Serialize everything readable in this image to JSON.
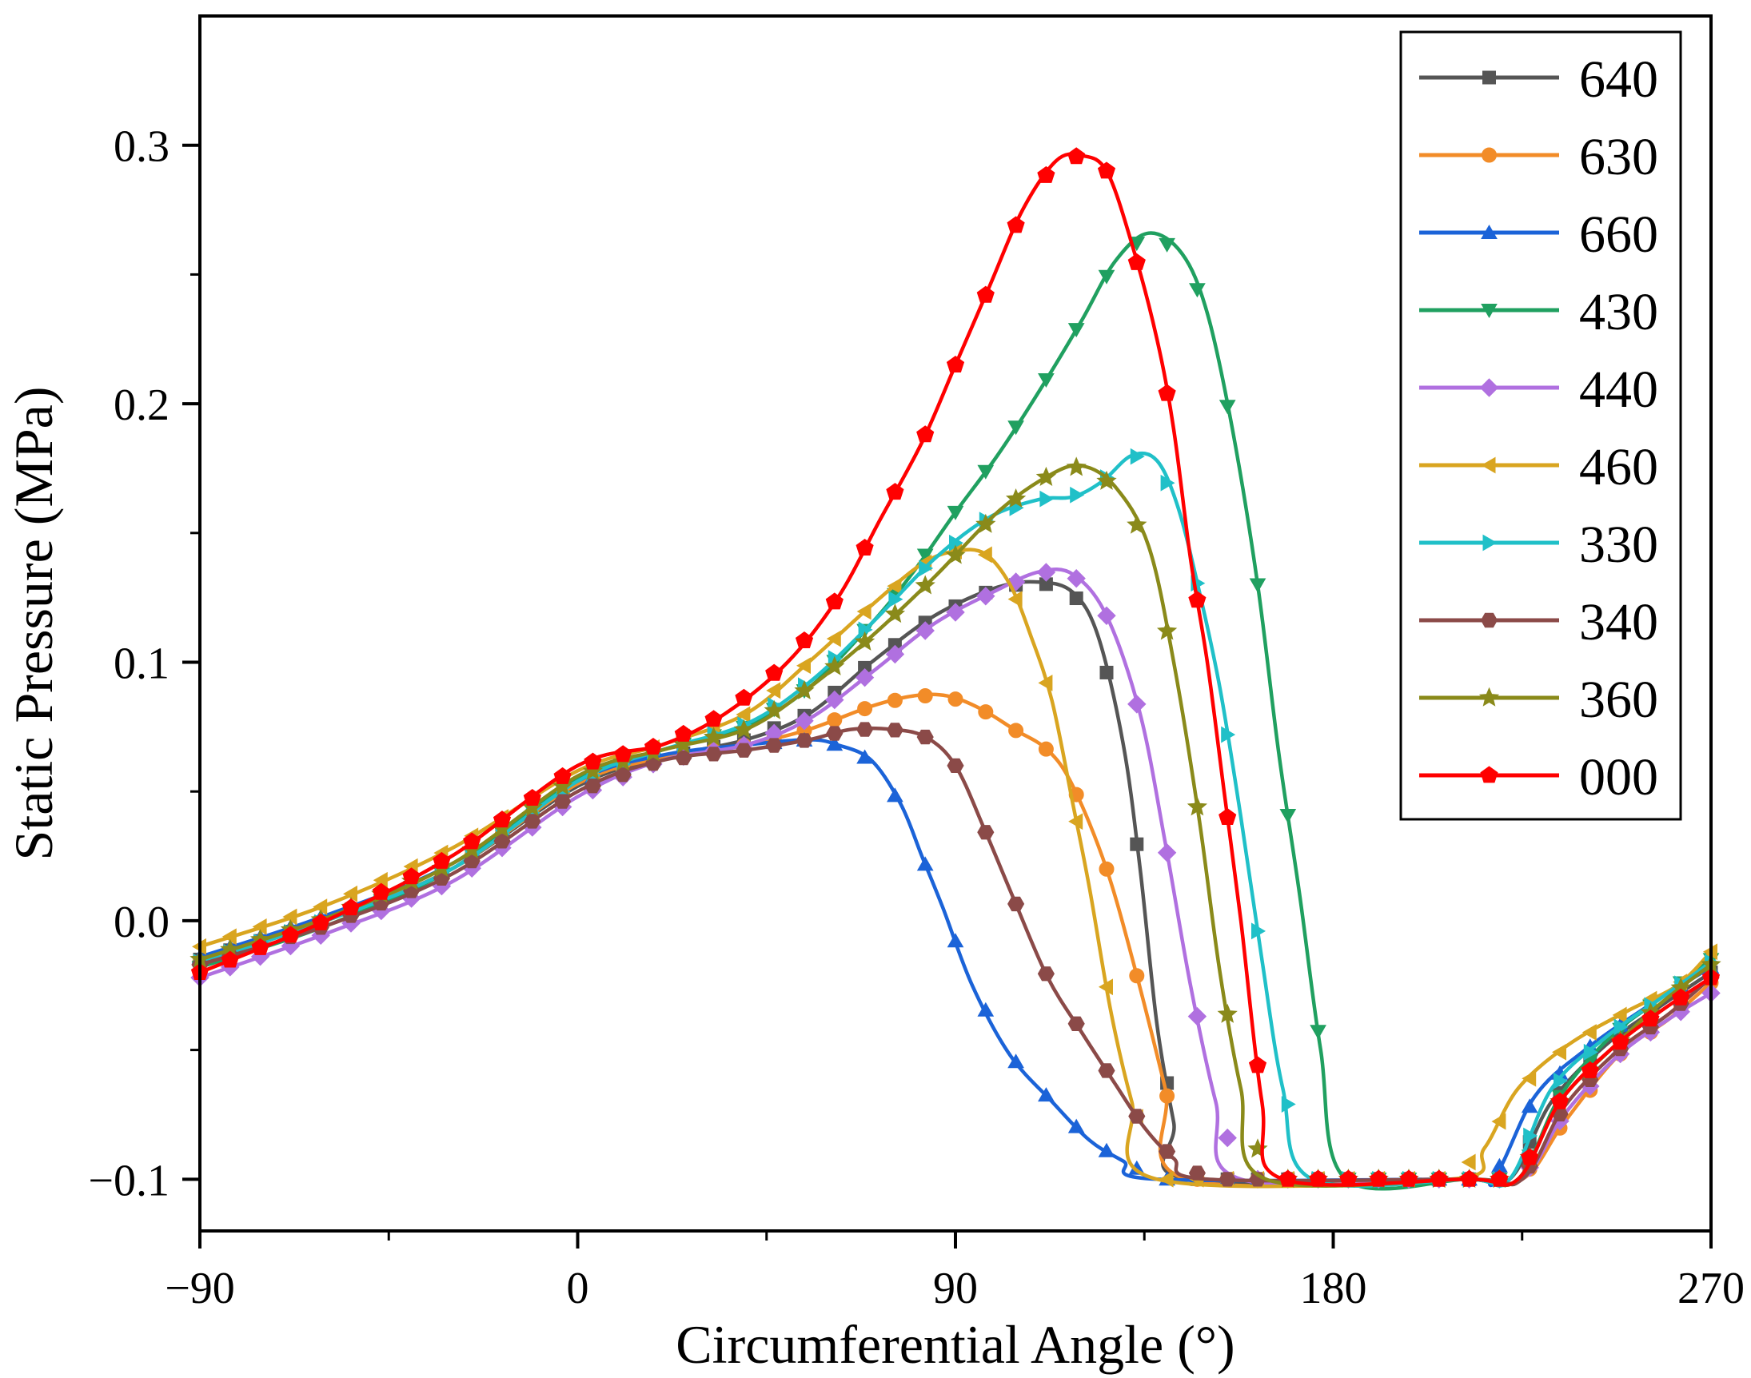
{
  "chart_data": {
    "type": "line",
    "title": "",
    "xlabel": "Circumferential Angle (°)",
    "ylabel": "Static Pressure (MPa)",
    "xlim": [
      -90,
      270
    ],
    "ylim": [
      -0.12,
      0.35
    ],
    "xticks": [
      -90,
      0,
      90,
      180,
      270
    ],
    "xtick_labels": [
      "−90",
      "0",
      "90",
      "180",
      "270"
    ],
    "yticks": [
      -0.1,
      0.0,
      0.1,
      0.2,
      0.3
    ],
    "ytick_labels": [
      "−0.1",
      "0.0",
      "0.1",
      "0.2",
      "0.3"
    ],
    "legend_position": "top-right",
    "series": [
      {
        "name": "640",
        "color": "#555555",
        "marker": "square",
        "points": [
          [
            -90,
            -0.015
          ],
          [
            -60,
            0.0
          ],
          [
            -30,
            0.02
          ],
          [
            0,
            0.052
          ],
          [
            20,
            0.063
          ],
          [
            40,
            0.07
          ],
          [
            55,
            0.08
          ],
          [
            70,
            0.1
          ],
          [
            85,
            0.118
          ],
          [
            100,
            0.129
          ],
          [
            110,
            0.131
          ],
          [
            118,
            0.127
          ],
          [
            124,
            0.11
          ],
          [
            130,
            0.068
          ],
          [
            134,
            0.02
          ],
          [
            138,
            -0.04
          ],
          [
            142,
            -0.078
          ],
          [
            145,
            -0.1
          ],
          [
            210,
            -0.1
          ],
          [
            222,
            -0.1
          ],
          [
            232,
            -0.07
          ],
          [
            245,
            -0.048
          ],
          [
            258,
            -0.033
          ],
          [
            270,
            -0.02
          ]
        ]
      },
      {
        "name": "630",
        "color": "#f28c28",
        "marker": "circle",
        "points": [
          [
            -90,
            -0.016
          ],
          [
            -60,
            0.0
          ],
          [
            -30,
            0.02
          ],
          [
            0,
            0.053
          ],
          [
            20,
            0.063
          ],
          [
            40,
            0.068
          ],
          [
            55,
            0.074
          ],
          [
            70,
            0.083
          ],
          [
            80,
            0.087
          ],
          [
            88,
            0.087
          ],
          [
            96,
            0.082
          ],
          [
            104,
            0.074
          ],
          [
            112,
            0.066
          ],
          [
            118,
            0.052
          ],
          [
            126,
            0.02
          ],
          [
            133,
            -0.02
          ],
          [
            140,
            -0.065
          ],
          [
            145,
            -0.1
          ],
          [
            210,
            -0.1
          ],
          [
            225,
            -0.1
          ],
          [
            235,
            -0.078
          ],
          [
            248,
            -0.052
          ],
          [
            260,
            -0.038
          ],
          [
            270,
            -0.024
          ]
        ]
      },
      {
        "name": "660",
        "color": "#1b63d8",
        "marker": "triangle-up",
        "points": [
          [
            -90,
            -0.014
          ],
          [
            -60,
            0.002
          ],
          [
            -30,
            0.022
          ],
          [
            0,
            0.054
          ],
          [
            20,
            0.064
          ],
          [
            40,
            0.068
          ],
          [
            55,
            0.07
          ],
          [
            62,
            0.068
          ],
          [
            70,
            0.062
          ],
          [
            77,
            0.045
          ],
          [
            82,
            0.025
          ],
          [
            87,
            0.005
          ],
          [
            94,
            -0.025
          ],
          [
            103,
            -0.052
          ],
          [
            113,
            -0.07
          ],
          [
            122,
            -0.085
          ],
          [
            130,
            -0.093
          ],
          [
            138,
            -0.1
          ],
          [
            210,
            -0.1
          ],
          [
            218,
            -0.1
          ],
          [
            228,
            -0.068
          ],
          [
            240,
            -0.05
          ],
          [
            255,
            -0.033
          ],
          [
            270,
            -0.018
          ]
        ]
      },
      {
        "name": "430",
        "color": "#20a060",
        "marker": "triangle-down",
        "points": [
          [
            -90,
            -0.018
          ],
          [
            -60,
            -0.002
          ],
          [
            -30,
            0.02
          ],
          [
            0,
            0.055
          ],
          [
            20,
            0.066
          ],
          [
            40,
            0.075
          ],
          [
            55,
            0.09
          ],
          [
            70,
            0.115
          ],
          [
            80,
            0.135
          ],
          [
            90,
            0.158
          ],
          [
            100,
            0.18
          ],
          [
            110,
            0.205
          ],
          [
            120,
            0.232
          ],
          [
            128,
            0.255
          ],
          [
            136,
            0.266
          ],
          [
            144,
            0.258
          ],
          [
            150,
            0.235
          ],
          [
            156,
            0.19
          ],
          [
            162,
            0.13
          ],
          [
            167,
            0.065
          ],
          [
            172,
            0.01
          ],
          [
            177,
            -0.05
          ],
          [
            183,
            -0.1
          ],
          [
            212,
            -0.1
          ],
          [
            224,
            -0.1
          ],
          [
            234,
            -0.068
          ],
          [
            246,
            -0.045
          ],
          [
            258,
            -0.03
          ],
          [
            270,
            -0.015
          ]
        ]
      },
      {
        "name": "440",
        "color": "#b070e0",
        "marker": "diamond",
        "points": [
          [
            -90,
            -0.022
          ],
          [
            -60,
            -0.005
          ],
          [
            -30,
            0.015
          ],
          [
            0,
            0.048
          ],
          [
            20,
            0.062
          ],
          [
            40,
            0.068
          ],
          [
            55,
            0.078
          ],
          [
            70,
            0.096
          ],
          [
            85,
            0.115
          ],
          [
            100,
            0.128
          ],
          [
            110,
            0.135
          ],
          [
            118,
            0.134
          ],
          [
            126,
            0.118
          ],
          [
            134,
            0.08
          ],
          [
            140,
            0.03
          ],
          [
            146,
            -0.025
          ],
          [
            152,
            -0.07
          ],
          [
            158,
            -0.1
          ],
          [
            212,
            -0.1
          ],
          [
            225,
            -0.1
          ],
          [
            235,
            -0.075
          ],
          [
            248,
            -0.052
          ],
          [
            260,
            -0.038
          ],
          [
            270,
            -0.028
          ]
        ]
      },
      {
        "name": "460",
        "color": "#d9a520",
        "marker": "triangle-left",
        "points": [
          [
            -90,
            -0.01
          ],
          [
            -60,
            0.006
          ],
          [
            -30,
            0.028
          ],
          [
            0,
            0.058
          ],
          [
            20,
            0.068
          ],
          [
            40,
            0.08
          ],
          [
            55,
            0.1
          ],
          [
            70,
            0.122
          ],
          [
            82,
            0.138
          ],
          [
            90,
            0.143
          ],
          [
            97,
            0.142
          ],
          [
            103,
            0.13
          ],
          [
            108,
            0.11
          ],
          [
            113,
            0.085
          ],
          [
            118,
            0.045
          ],
          [
            122,
            0.012
          ],
          [
            127,
            -0.035
          ],
          [
            132,
            -0.07
          ],
          [
            138,
            -0.1
          ],
          [
            208,
            -0.1
          ],
          [
            216,
            -0.088
          ],
          [
            224,
            -0.065
          ],
          [
            236,
            -0.048
          ],
          [
            250,
            -0.035
          ],
          [
            262,
            -0.025
          ],
          [
            270,
            -0.012
          ]
        ]
      },
      {
        "name": "330",
        "color": "#20c0c8",
        "marker": "triangle-right",
        "points": [
          [
            -90,
            -0.016
          ],
          [
            -60,
            0.0
          ],
          [
            -30,
            0.02
          ],
          [
            0,
            0.054
          ],
          [
            20,
            0.066
          ],
          [
            40,
            0.076
          ],
          [
            55,
            0.092
          ],
          [
            70,
            0.115
          ],
          [
            85,
            0.14
          ],
          [
            98,
            0.156
          ],
          [
            110,
            0.163
          ],
          [
            118,
            0.164
          ],
          [
            125,
            0.17
          ],
          [
            132,
            0.18
          ],
          [
            138,
            0.178
          ],
          [
            143,
            0.16
          ],
          [
            148,
            0.128
          ],
          [
            153,
            0.09
          ],
          [
            158,
            0.04
          ],
          [
            163,
            -0.015
          ],
          [
            168,
            -0.065
          ],
          [
            175,
            -0.1
          ],
          [
            212,
            -0.1
          ],
          [
            222,
            -0.1
          ],
          [
            232,
            -0.065
          ],
          [
            245,
            -0.045
          ],
          [
            258,
            -0.03
          ],
          [
            270,
            -0.016
          ]
        ]
      },
      {
        "name": "340",
        "color": "#8b4a48",
        "marker": "hexagon",
        "points": [
          [
            -90,
            -0.017
          ],
          [
            -60,
            -0.002
          ],
          [
            -30,
            0.018
          ],
          [
            0,
            0.05
          ],
          [
            20,
            0.062
          ],
          [
            40,
            0.066
          ],
          [
            55,
            0.07
          ],
          [
            65,
            0.074
          ],
          [
            75,
            0.074
          ],
          [
            83,
            0.071
          ],
          [
            90,
            0.06
          ],
          [
            97,
            0.035
          ],
          [
            104,
            0.008
          ],
          [
            112,
            -0.022
          ],
          [
            120,
            -0.043
          ],
          [
            128,
            -0.063
          ],
          [
            135,
            -0.08
          ],
          [
            142,
            -0.092
          ],
          [
            150,
            -0.1
          ],
          [
            212,
            -0.1
          ],
          [
            225,
            -0.1
          ],
          [
            235,
            -0.072
          ],
          [
            248,
            -0.05
          ],
          [
            260,
            -0.036
          ],
          [
            270,
            -0.022
          ]
        ]
      },
      {
        "name": "360",
        "color": "#8a8a1a",
        "marker": "star",
        "points": [
          [
            -90,
            -0.015
          ],
          [
            -60,
            0.001
          ],
          [
            -30,
            0.022
          ],
          [
            0,
            0.056
          ],
          [
            20,
            0.066
          ],
          [
            40,
            0.074
          ],
          [
            55,
            0.09
          ],
          [
            70,
            0.11
          ],
          [
            85,
            0.133
          ],
          [
            100,
            0.158
          ],
          [
            112,
            0.172
          ],
          [
            120,
            0.176
          ],
          [
            128,
            0.168
          ],
          [
            136,
            0.145
          ],
          [
            142,
            0.1
          ],
          [
            148,
            0.04
          ],
          [
            153,
            -0.02
          ],
          [
            158,
            -0.065
          ],
          [
            164,
            -0.1
          ],
          [
            212,
            -0.1
          ],
          [
            224,
            -0.1
          ],
          [
            234,
            -0.07
          ],
          [
            246,
            -0.05
          ],
          [
            258,
            -0.032
          ],
          [
            270,
            -0.017
          ]
        ]
      },
      {
        "name": "000",
        "color": "#ff0000",
        "marker": "pentagon",
        "points": [
          [
            -90,
            -0.02
          ],
          [
            -60,
            0.0
          ],
          [
            -30,
            0.025
          ],
          [
            0,
            0.06
          ],
          [
            20,
            0.068
          ],
          [
            35,
            0.08
          ],
          [
            50,
            0.1
          ],
          [
            62,
            0.125
          ],
          [
            72,
            0.155
          ],
          [
            82,
            0.185
          ],
          [
            90,
            0.215
          ],
          [
            98,
            0.245
          ],
          [
            106,
            0.275
          ],
          [
            114,
            0.294
          ],
          [
            120,
            0.296
          ],
          [
            126,
            0.29
          ],
          [
            132,
            0.262
          ],
          [
            138,
            0.225
          ],
          [
            142,
            0.19
          ],
          [
            146,
            0.14
          ],
          [
            150,
            0.1
          ],
          [
            154,
            0.05
          ],
          [
            158,
            0.0
          ],
          [
            163,
            -0.07
          ],
          [
            168,
            -0.1
          ],
          [
            212,
            -0.1
          ],
          [
            224,
            -0.1
          ],
          [
            234,
            -0.07
          ],
          [
            246,
            -0.05
          ],
          [
            258,
            -0.035
          ],
          [
            270,
            -0.022
          ]
        ]
      }
    ]
  }
}
